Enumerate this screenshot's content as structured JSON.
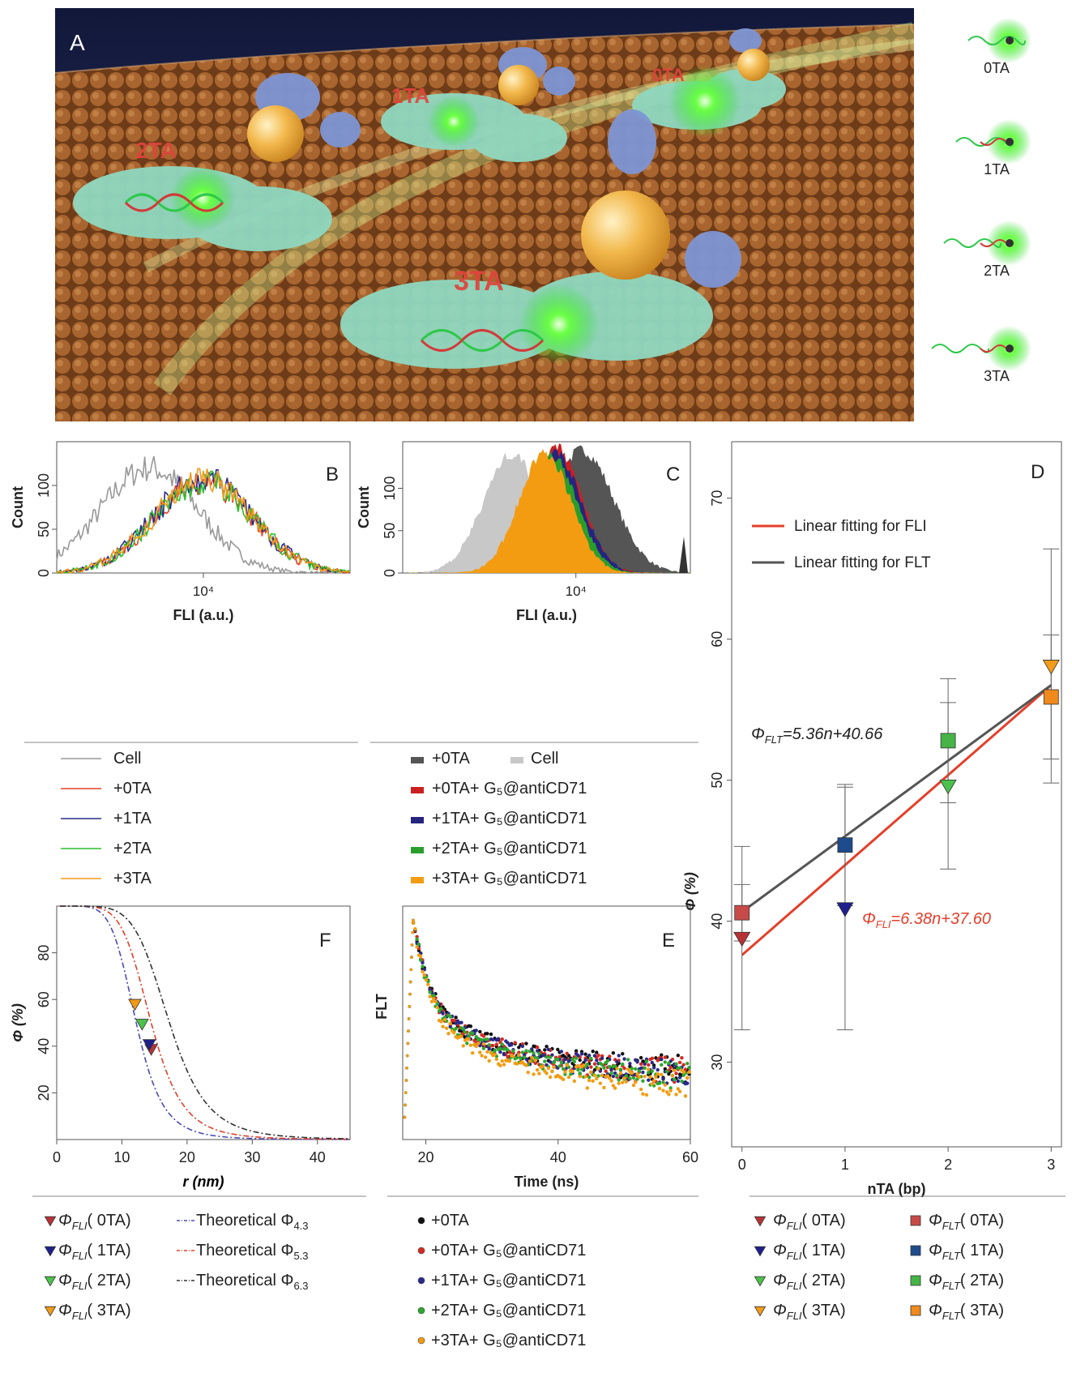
{
  "panel_a": {
    "letter": "A",
    "scene_labels": [
      "0TA",
      "1TA",
      "2TA",
      "3TA"
    ],
    "side_labels": [
      "0TA",
      "1TA",
      "2TA",
      "3TA"
    ],
    "colors": {
      "bg_top": "#1b2246",
      "lipid": "#9a5a2a",
      "protein": "#8fd8c0",
      "gold": "#f0b64a",
      "glow": "#5cff3c",
      "label": "#e0443c"
    }
  },
  "chart_data": [
    {
      "id": "B",
      "type": "area",
      "panel_letter": "B",
      "xlabel": "FLI (a.u.)",
      "ylabel": "Count",
      "x_scale": "log",
      "x_tick_labels": [
        "10⁴"
      ],
      "y_ticks": [
        0,
        50,
        100
      ],
      "xlim": [
        2500,
        40000
      ],
      "ylim": [
        0,
        150
      ],
      "series": [
        {
          "name": "Cell",
          "color": "#999999",
          "peak_x": 6000,
          "peak_y": 120
        },
        {
          "name": "+0TA",
          "color": "#e3402b",
          "peak_x": 10000,
          "peak_y": 105
        },
        {
          "name": "+1TA",
          "color": "#2a2a8c",
          "peak_x": 10000,
          "peak_y": 108
        },
        {
          "name": "+2TA",
          "color": "#2dbf2d",
          "peak_x": 10000,
          "peak_y": 104
        },
        {
          "name": "+3TA",
          "color": "#f29a1a",
          "peak_x": 10000,
          "peak_y": 106
        }
      ]
    },
    {
      "id": "C",
      "type": "area",
      "panel_letter": "C",
      "xlabel": "FLI (a.u.)",
      "ylabel": "Count",
      "x_scale": "log",
      "x_tick_labels": [
        "10⁴"
      ],
      "y_ticks": [
        0,
        50,
        100
      ],
      "xlim": [
        2500,
        25000
      ],
      "ylim": [
        0,
        155
      ],
      "series": [
        {
          "name": "+0TA",
          "color": "#555555",
          "peak_x": 10500,
          "peak_y": 145
        },
        {
          "name": "Cell",
          "color": "#c8c8c8",
          "peak_x": 6000,
          "peak_y": 140
        },
        {
          "name": "+0TA+ G₅@antiCD71",
          "color": "#cc1f1f",
          "peak_x": 8500,
          "peak_y": 148
        },
        {
          "name": "+1TA+ G₅@antiCD71",
          "color": "#252580",
          "peak_x": 8500,
          "peak_y": 140
        },
        {
          "name": "+2TA+ G₅@antiCD71",
          "color": "#2a9e2a",
          "peak_x": 8200,
          "peak_y": 138
        },
        {
          "name": "+3TA+ G₅@antiCD71",
          "color": "#f39c12",
          "peak_x": 7800,
          "peak_y": 142
        }
      ]
    },
    {
      "id": "D",
      "type": "scatter",
      "panel_letter": "D",
      "xlabel": "nTA (bp)",
      "ylabel": "Φ (%)",
      "xlim": [
        -0.1,
        3.1
      ],
      "ylim": [
        24,
        74
      ],
      "x_ticks": [
        0,
        1,
        2,
        3
      ],
      "y_ticks": [
        30,
        40,
        50,
        60,
        70
      ],
      "legend_position": "top-left",
      "fits": [
        {
          "name": "Linear fitting for FLI",
          "color": "#e3402b",
          "slope": 6.38,
          "intercept": 37.6,
          "equation": "=6.38n+37.60",
          "symbol": "Φ",
          "subscript": "FLI"
        },
        {
          "name": "Linear fitting for FLT",
          "color": "#555555",
          "slope": 5.36,
          "intercept": 40.66,
          "equation": "=5.36n+40.66",
          "symbol": "Φ",
          "subscript": "FLT"
        }
      ],
      "series": [
        {
          "name": "ΦFLI",
          "label_sym": "Φ",
          "label_sub": "FLI",
          "label_tail": [
            "( 0TA)",
            "( 1TA)",
            "( 2TA)",
            "( 3TA)"
          ],
          "marker": "triangle-down",
          "x": [
            0,
            1,
            2,
            3
          ],
          "y": [
            38.8,
            40.9,
            49.6,
            58.1
          ],
          "err": [
            6.5,
            8.6,
            5.9,
            8.3
          ],
          "colors": [
            "#b83238",
            "#1f1f8c",
            "#4cc24c",
            "#f29a1a"
          ]
        },
        {
          "name": "ΦFLT",
          "label_sym": "Φ",
          "label_sub": "FLT",
          "label_tail": [
            "( 0TA)",
            "( 1TA)",
            "( 2TA)",
            "( 3TA)"
          ],
          "marker": "square",
          "x": [
            0,
            1,
            2,
            3
          ],
          "y": [
            40.6,
            45.4,
            52.8,
            55.9
          ],
          "err": [
            2.0,
            4.3,
            4.4,
            4.4
          ],
          "colors": [
            "#c84a48",
            "#1e4b8c",
            "#46b446",
            "#f08a1c"
          ]
        }
      ]
    },
    {
      "id": "E",
      "type": "scatter",
      "panel_letter": "E",
      "xlabel": "Time (ns)",
      "ylabel": "FLT",
      "xlim": [
        16.5,
        60
      ],
      "ylim": [
        0,
        1.05
      ],
      "x_ticks": [
        20,
        40,
        60
      ],
      "series": [
        {
          "name": "+0TA",
          "color": "#111111",
          "tail": 0.3
        },
        {
          "name": "+0TA+ G₅@antiCD71",
          "color": "#d62a20",
          "tail": 0.29
        },
        {
          "name": "+1TA+ G₅@antiCD71",
          "color": "#2a2a8c",
          "tail": 0.29
        },
        {
          "name": "+2TA+ G₅@antiCD71",
          "color": "#2da82d",
          "tail": 0.27
        },
        {
          "name": "+3TA+ G₅@antiCD71",
          "color": "#f39c12",
          "tail": 0.23
        }
      ]
    },
    {
      "id": "F",
      "type": "line",
      "panel_letter": "F",
      "xlabel": "r (nm)",
      "ylabel": "Φ (%)",
      "xlim": [
        0,
        45
      ],
      "ylim": [
        0,
        100
      ],
      "x_ticks": [
        0,
        10,
        20,
        30,
        40
      ],
      "y_ticks": [
        20,
        40,
        60,
        80
      ],
      "curves": [
        {
          "name": "Theoretical Φ4.3",
          "label": "Theoretical Φ",
          "label_sub": "4.3",
          "R0": 12.2,
          "color": "#4a4ab8"
        },
        {
          "name": "Theoretical Φ5.3",
          "label": "Theoretical Φ",
          "label_sub": "5.3",
          "R0": 14.5,
          "color": "#e3402b"
        },
        {
          "name": "Theoretical Φ6.3",
          "label": "Theoretical Φ",
          "label_sub": "6.3",
          "R0": 17.3,
          "color": "#333333"
        }
      ],
      "points": [
        {
          "label_sym": "Φ",
          "label_sub": "FLI",
          "label_tail": "( 0TA)",
          "x": 14.5,
          "y": 38.8,
          "color": "#b83238"
        },
        {
          "label_sym": "Φ",
          "label_sub": "FLI",
          "label_tail": "( 1TA)",
          "x": 14.2,
          "y": 40.9,
          "color": "#1f1f8c"
        },
        {
          "label_sym": "Φ",
          "label_sub": "FLI",
          "label_tail": "( 2TA)",
          "x": 13.1,
          "y": 49.6,
          "color": "#4cc24c"
        },
        {
          "label_sym": "Φ",
          "label_sub": "FLI",
          "label_tail": "( 3TA)",
          "x": 12.0,
          "y": 58.1,
          "color": "#f29a1a"
        }
      ]
    }
  ]
}
